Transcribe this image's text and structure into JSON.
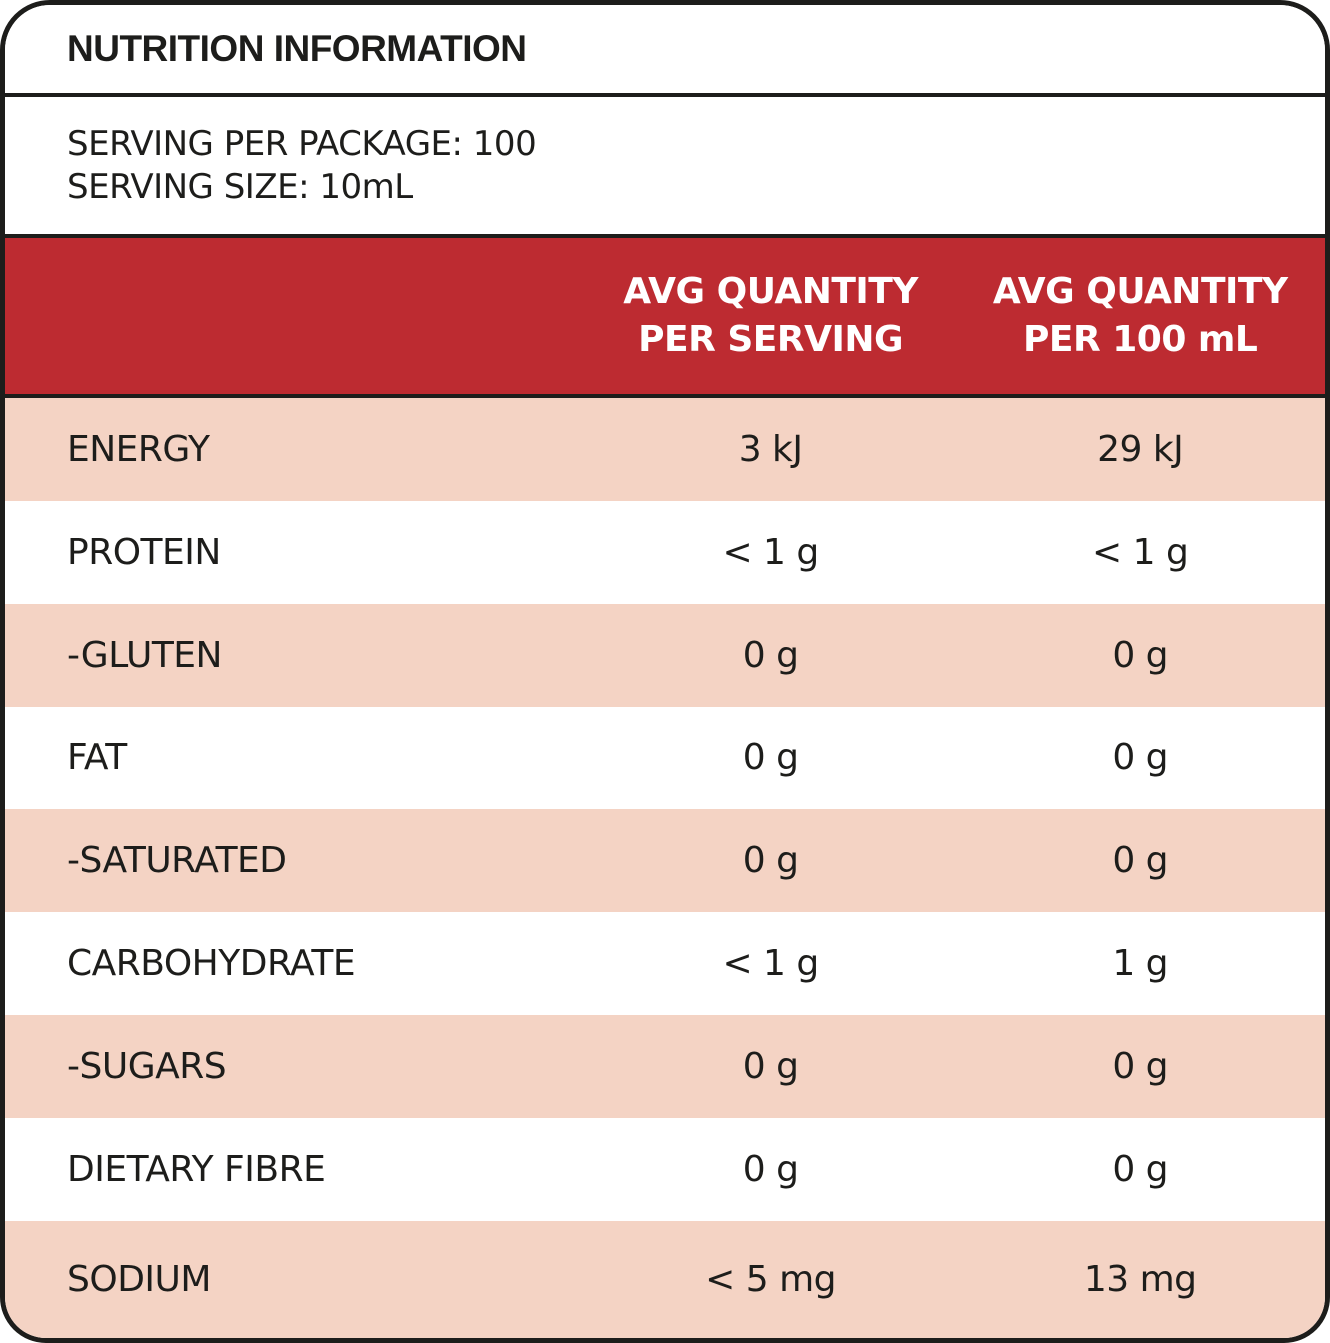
{
  "colors": {
    "red": "#BD2B31",
    "pink": "#F4D3C4",
    "border": "#1D1D1B",
    "text": "#1D1D1B",
    "header_text": "#FFFFFF"
  },
  "header": {
    "title": "NUTRITION INFORMATION"
  },
  "serving": {
    "per_package": "SERVING PER PACKAGE: 100",
    "size": "SERVING SIZE: 10mL"
  },
  "columns": {
    "per_serving": {
      "line1": "AVG QUANTITY",
      "line2": "PER SERVING"
    },
    "per_100ml": {
      "line1": "AVG QUANTITY",
      "line2": "PER 100 mL"
    }
  },
  "rows": [
    {
      "name": "ENERGY",
      "per_serving": "3 kJ",
      "per_100ml": "29 kJ"
    },
    {
      "name": "PROTEIN",
      "per_serving": "< 1 g",
      "per_100ml": "< 1 g"
    },
    {
      "name": "-GLUTEN",
      "per_serving": "0 g",
      "per_100ml": "0 g"
    },
    {
      "name": "FAT",
      "per_serving": "0 g",
      "per_100ml": "0 g"
    },
    {
      "name": "-SATURATED",
      "per_serving": "0 g",
      "per_100ml": "0 g"
    },
    {
      "name": "CARBOHYDRATE",
      "per_serving": "< 1 g",
      "per_100ml": "1 g"
    },
    {
      "name": "-SUGARS",
      "per_serving": "0 g",
      "per_100ml": "0 g"
    },
    {
      "name": "DIETARY FIBRE",
      "per_serving": "0 g",
      "per_100ml": "0 g"
    },
    {
      "name": "SODIUM",
      "per_serving": "< 5 mg",
      "per_100ml": "13 mg"
    }
  ]
}
